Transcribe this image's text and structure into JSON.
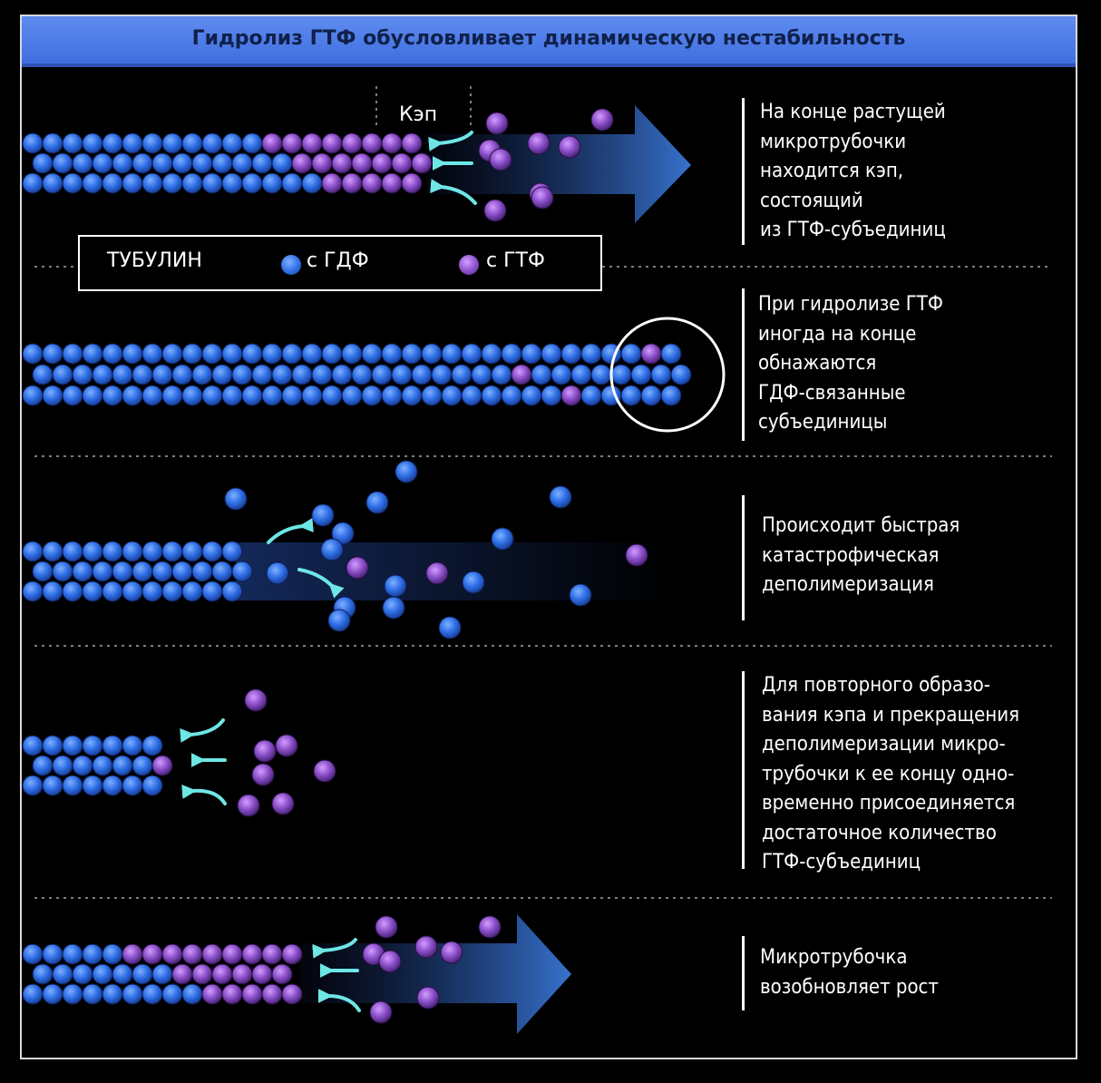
{
  "title": "Гидролиз ГТФ обусловливает динамическую нестабильность",
  "cap_label": "Кэп",
  "legend": {
    "label": "ТУБУЛИН",
    "gdp": "с ГДФ",
    "gtp": "с ГТФ"
  },
  "steps": [
    {
      "text": "На конце растущей\nмикротрубочки\nнаходится кэп,\nсостоящий\nиз ГТФ-субъединиц"
    },
    {
      "text": "При гидролизе ГТФ\nиногда на конце\nобнажаются\nГДФ-связанные\nсубъединицы"
    },
    {
      "text": "Происходит быстрая\nкатастрофическая\nдеполимеризация"
    },
    {
      "text": "Для повторного образо-\nвания кэпа и прекращения\nдеполимеризации микро-\nтрубочки к ее концу одно-\nвременно присоединяется\nдостаточное количество\nГТФ-субъединиц"
    },
    {
      "text": "Микротрубочка\nвозобновляет рост"
    }
  ],
  "colors": {
    "gdp": "#2f6fe6",
    "gtp": "#8a4fc8",
    "arrow": "#6ee6e6",
    "background": "#000000",
    "title_bar": "#4f7ee8"
  }
}
